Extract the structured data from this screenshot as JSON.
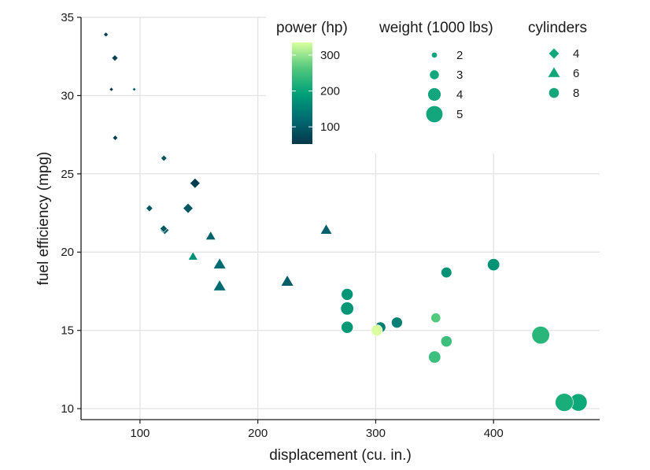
{
  "chart_data": {
    "type": "scatter",
    "xlabel": "displacement (cu. in.)",
    "ylabel": "fuel efficiency (mpg)",
    "xlim": [
      50,
      490
    ],
    "ylim": [
      9.3,
      35
    ],
    "x_ticks": [
      100,
      200,
      300,
      400
    ],
    "y_ticks": [
      10,
      15,
      20,
      25,
      30,
      35
    ],
    "grid": true,
    "legends": {
      "power": {
        "title": "power (hp)",
        "range": [
          52,
          335
        ],
        "ticks": [
          100,
          200,
          300
        ],
        "colors": [
          "#04384a",
          "#006b72",
          "#00a178",
          "#52c97d",
          "#d9ff9e"
        ]
      },
      "weight": {
        "title": "weight (1000 lbs)",
        "values": [
          2,
          3,
          4,
          5
        ]
      },
      "cylinders": {
        "title": "cylinders",
        "entries": [
          {
            "label": "4",
            "shape": "diamond"
          },
          {
            "label": "6",
            "shape": "triangle"
          },
          {
            "label": "8",
            "shape": "circle"
          }
        ],
        "swatch_color": "#13a67c"
      }
    },
    "points": [
      {
        "x": 71.1,
        "y": 33.9,
        "hp": 65,
        "wt": 1.835,
        "cyl": 4
      },
      {
        "x": 78.7,
        "y": 32.4,
        "hp": 66,
        "wt": 2.2,
        "cyl": 4
      },
      {
        "x": 75.7,
        "y": 30.4,
        "hp": 52,
        "wt": 1.615,
        "cyl": 4
      },
      {
        "x": 95.1,
        "y": 30.4,
        "hp": 113,
        "wt": 1.513,
        "cyl": 4
      },
      {
        "x": 79.0,
        "y": 27.3,
        "hp": 66,
        "wt": 1.935,
        "cyl": 4
      },
      {
        "x": 120.3,
        "y": 26.0,
        "hp": 91,
        "wt": 2.14,
        "cyl": 4
      },
      {
        "x": 146.7,
        "y": 24.4,
        "hp": 62,
        "wt": 3.19,
        "cyl": 4
      },
      {
        "x": 108.0,
        "y": 22.8,
        "hp": 93,
        "wt": 2.32,
        "cyl": 4
      },
      {
        "x": 140.8,
        "y": 22.8,
        "hp": 95,
        "wt": 3.15,
        "cyl": 4
      },
      {
        "x": 121.0,
        "y": 21.4,
        "hp": 109,
        "wt": 2.78,
        "cyl": 4
      },
      {
        "x": 120.1,
        "y": 21.5,
        "hp": 97,
        "wt": 2.465,
        "cyl": 4
      },
      {
        "x": 160.0,
        "y": 21.0,
        "hp": 110,
        "wt": 2.62,
        "cyl": 6
      },
      {
        "x": 160.0,
        "y": 21.0,
        "hp": 110,
        "wt": 2.875,
        "cyl": 6
      },
      {
        "x": 258.0,
        "y": 21.4,
        "hp": 110,
        "wt": 3.215,
        "cyl": 6
      },
      {
        "x": 225.0,
        "y": 18.1,
        "hp": 105,
        "wt": 3.46,
        "cyl": 6
      },
      {
        "x": 167.6,
        "y": 19.2,
        "hp": 123,
        "wt": 3.44,
        "cyl": 6
      },
      {
        "x": 167.6,
        "y": 17.8,
        "hp": 123,
        "wt": 3.44,
        "cyl": 6
      },
      {
        "x": 145.0,
        "y": 19.7,
        "hp": 175,
        "wt": 2.77,
        "cyl": 6
      },
      {
        "x": 360.0,
        "y": 18.7,
        "hp": 175,
        "wt": 3.44,
        "cyl": 8
      },
      {
        "x": 400.0,
        "y": 19.2,
        "hp": 175,
        "wt": 3.845,
        "cyl": 8
      },
      {
        "x": 275.8,
        "y": 16.4,
        "hp": 180,
        "wt": 4.07,
        "cyl": 8
      },
      {
        "x": 275.8,
        "y": 17.3,
        "hp": 180,
        "wt": 3.73,
        "cyl": 8
      },
      {
        "x": 275.8,
        "y": 15.2,
        "hp": 180,
        "wt": 3.78,
        "cyl": 8
      },
      {
        "x": 318.0,
        "y": 15.5,
        "hp": 150,
        "wt": 3.52,
        "cyl": 8
      },
      {
        "x": 304.0,
        "y": 15.2,
        "hp": 150,
        "wt": 3.435,
        "cyl": 8
      },
      {
        "x": 350.0,
        "y": 13.3,
        "hp": 245,
        "wt": 3.84,
        "cyl": 8
      },
      {
        "x": 360.0,
        "y": 14.3,
        "hp": 245,
        "wt": 3.57,
        "cyl": 8
      },
      {
        "x": 351.0,
        "y": 15.8,
        "hp": 264,
        "wt": 3.17,
        "cyl": 8
      },
      {
        "x": 301.0,
        "y": 15.0,
        "hp": 335,
        "wt": 3.57,
        "cyl": 8
      },
      {
        "x": 440.0,
        "y": 14.7,
        "hp": 230,
        "wt": 5.345,
        "cyl": 8
      },
      {
        "x": 472.0,
        "y": 10.4,
        "hp": 205,
        "wt": 5.25,
        "cyl": 8
      },
      {
        "x": 460.0,
        "y": 10.4,
        "hp": 215,
        "wt": 5.424,
        "cyl": 8
      }
    ]
  }
}
